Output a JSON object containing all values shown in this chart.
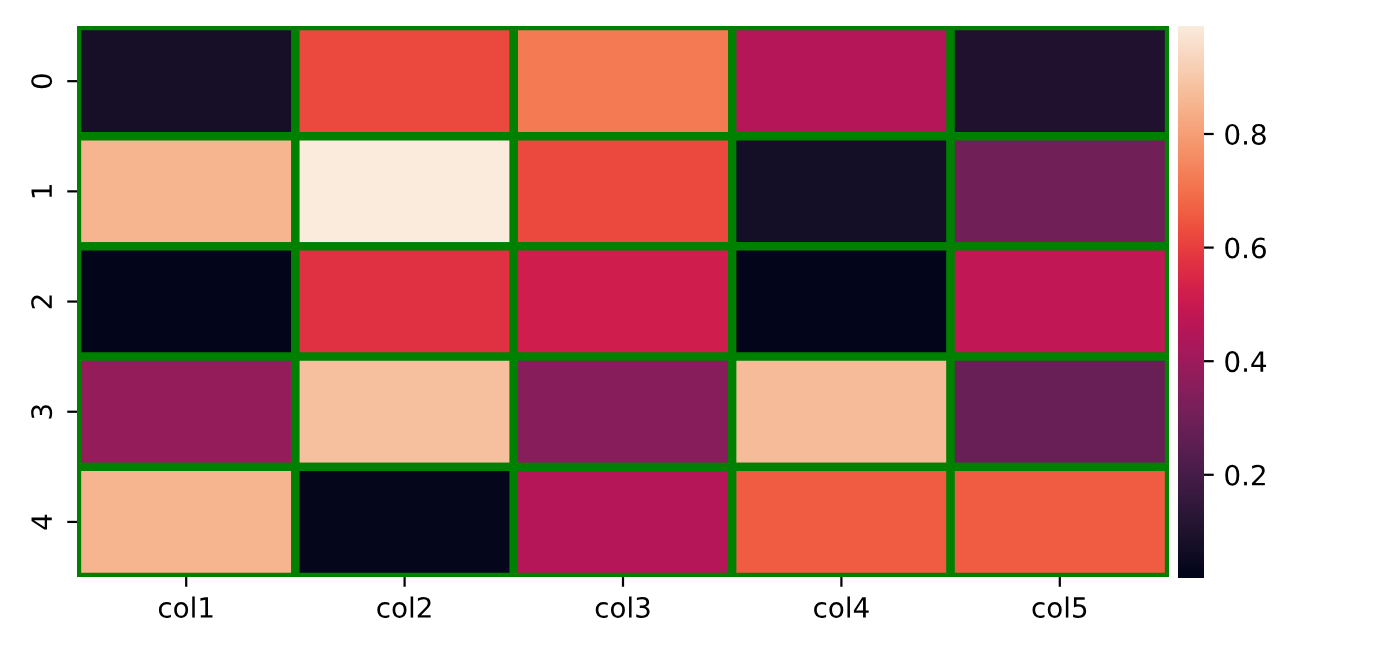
{
  "chart_data": {
    "type": "heatmap",
    "categories": [
      "col1",
      "col2",
      "col3",
      "col4",
      "col5"
    ],
    "y_categories": [
      "0",
      "1",
      "2",
      "3",
      "4"
    ],
    "cells": [
      [
        0.08,
        0.62,
        0.72,
        0.45,
        0.1
      ],
      [
        0.85,
        0.99,
        0.62,
        0.07,
        0.3
      ],
      [
        0.02,
        0.57,
        0.52,
        0.02,
        0.48
      ],
      [
        0.38,
        0.88,
        0.35,
        0.87,
        0.28
      ],
      [
        0.85,
        0.03,
        0.45,
        0.66,
        0.66
      ]
    ],
    "clim": [
      0.02,
      0.99
    ],
    "cticks": [
      0.2,
      0.4,
      0.6,
      0.8
    ]
  }
}
